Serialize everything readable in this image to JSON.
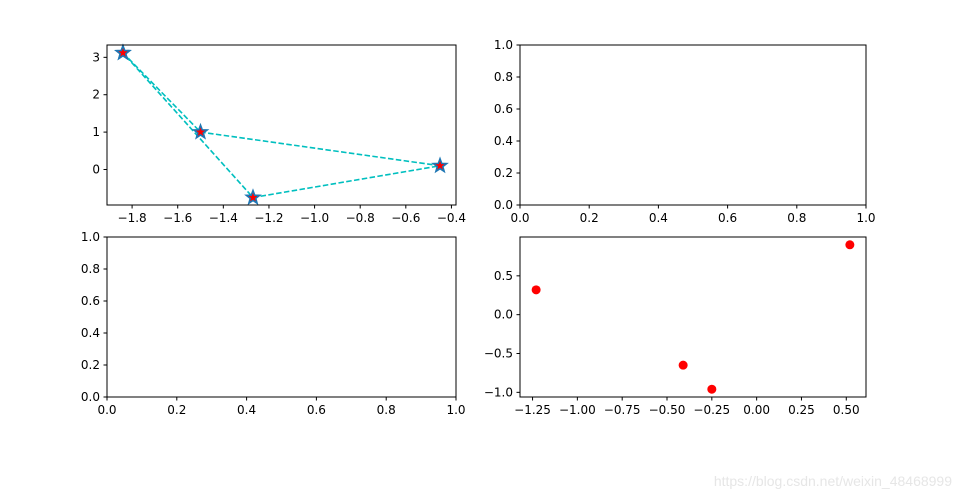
{
  "chart_data": [
    {
      "type": "line",
      "position": "top-left",
      "series": [
        {
          "x": [
            -1.84,
            -1.5,
            -0.45,
            -1.27,
            -1.84
          ],
          "y": [
            3.12,
            1.0,
            0.1,
            -0.75,
            3.12
          ],
          "line_color": "#00bfbf",
          "line_style": "dashed",
          "marker": "star",
          "marker_face_color": "#ff0000",
          "marker_edge_color": "#1f77b4"
        }
      ],
      "xlim": [
        -1.91,
        -0.38
      ],
      "ylim": [
        -0.95,
        3.33
      ],
      "xticks": [
        -1.8,
        -1.6,
        -1.4,
        -1.2,
        -1.0,
        -0.8,
        -0.6,
        -0.4
      ],
      "xtick_labels": [
        "−1.8",
        "−1.6",
        "−1.4",
        "−1.2",
        "−1.0",
        "−0.8",
        "−0.6",
        "−0.4"
      ],
      "yticks": [
        3,
        2,
        1,
        0
      ],
      "ytick_labels": [
        "3",
        "2",
        "1",
        "0"
      ]
    },
    {
      "type": "line",
      "position": "top-right",
      "series": [],
      "xlim": [
        0,
        1
      ],
      "ylim": [
        0,
        1
      ],
      "xticks": [
        0.0,
        0.2,
        0.4,
        0.6,
        0.8,
        1.0
      ],
      "xtick_labels": [
        "0.0",
        "0.2",
        "0.4",
        "0.6",
        "0.8",
        "1.0"
      ],
      "yticks": [
        0.0,
        0.2,
        0.4,
        0.6,
        0.8,
        1.0
      ],
      "ytick_labels": [
        "0.0",
        "0.2",
        "0.4",
        "0.6",
        "0.8",
        "1.0"
      ]
    },
    {
      "type": "line",
      "position": "bottom-left",
      "series": [],
      "xlim": [
        0,
        1
      ],
      "ylim": [
        0,
        1
      ],
      "xticks": [
        0.0,
        0.2,
        0.4,
        0.6,
        0.8,
        1.0
      ],
      "xtick_labels": [
        "0.0",
        "0.2",
        "0.4",
        "0.6",
        "0.8",
        "1.0"
      ],
      "yticks": [
        0.0,
        0.2,
        0.4,
        0.6,
        0.8,
        1.0
      ],
      "ytick_labels": [
        "0.0",
        "0.2",
        "0.4",
        "0.6",
        "0.8",
        "1.0"
      ]
    },
    {
      "type": "scatter",
      "position": "bottom-right",
      "series": [
        {
          "x": [
            -1.23,
            -0.41,
            -0.25,
            0.52
          ],
          "y": [
            0.32,
            -0.65,
            -0.96,
            0.9
          ],
          "marker_color": "#ff0000",
          "marker": "circle"
        }
      ],
      "xlim": [
        -1.32,
        0.61
      ],
      "ylim": [
        -1.06,
        1.0
      ],
      "xticks": [
        -1.25,
        -1.0,
        -0.75,
        -0.5,
        -0.25,
        0.0,
        0.25,
        0.5
      ],
      "xtick_labels": [
        "−1.25",
        "−1.00",
        "−0.75",
        "−0.50",
        "−0.25",
        "0.00",
        "0.25",
        "0.50"
      ],
      "yticks": [
        0.5,
        0.0,
        -0.5,
        -1.0
      ],
      "ytick_labels": [
        "0.5",
        "0.0",
        "−0.5",
        "−1.0"
      ]
    }
  ],
  "watermark": "https://blog.csdn.net/weixin_48468999"
}
